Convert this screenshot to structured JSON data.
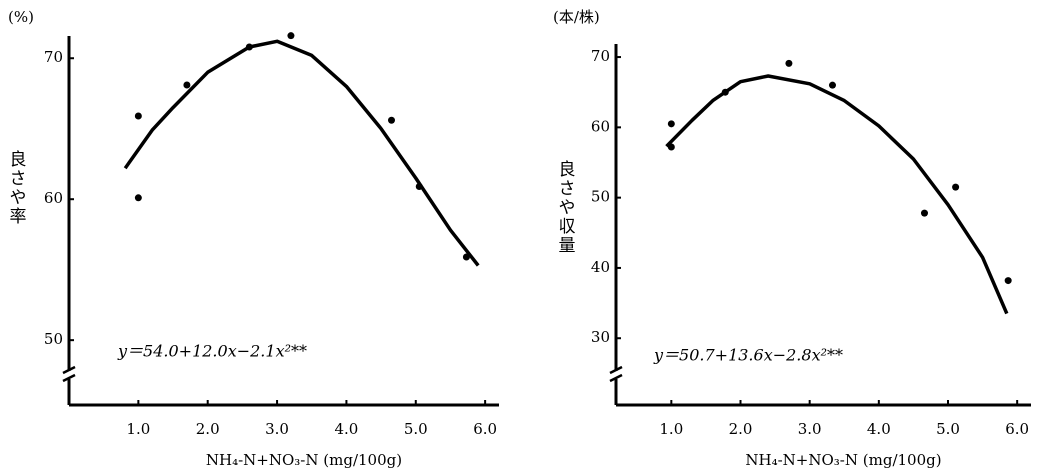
{
  "chart_data": [
    {
      "type": "scatter",
      "y_unit": "(%)",
      "ylabel": "良さや率",
      "xlabel": "NH₄-N+NO₃-N (mg/100g)",
      "equation": "y＝54.0+12.0x−2.1x²**",
      "color": "#000000",
      "grid": false,
      "y_break": true,
      "xlim": [
        0,
        6.2
      ],
      "ylim": [
        45.4,
        72.5
      ],
      "xticks": [
        {
          "value": 1,
          "label": "1.0"
        },
        {
          "value": 2,
          "label": "2.0"
        },
        {
          "value": 3,
          "label": "3.0"
        },
        {
          "value": 4,
          "label": "4.0"
        },
        {
          "value": 5,
          "label": "5.0"
        },
        {
          "value": 6,
          "label": "6.0"
        }
      ],
      "yticks": [
        50,
        60,
        70
      ],
      "points": {
        "x": [
          1.0,
          1.0,
          1.7,
          2.6,
          3.2,
          4.65,
          5.05,
          5.73
        ],
        "values": [
          65.9,
          60.1,
          68.1,
          70.8,
          71.6,
          65.6,
          60.9,
          55.9
        ]
      },
      "curve": {
        "x": [
          0.81,
          1.2,
          1.5,
          2.0,
          2.6,
          3.0,
          3.5,
          4.0,
          4.5,
          5.0,
          5.5,
          5.9
        ],
        "values": [
          62.2,
          64.9,
          66.5,
          69.0,
          70.8,
          71.2,
          70.2,
          68.0,
          65.0,
          61.5,
          57.8,
          55.3
        ]
      }
    },
    {
      "type": "scatter",
      "y_unit": "(本/株)",
      "ylabel": "良さや収量",
      "xlabel": "NH₄-N+NO₃-N (mg/100g)",
      "equation": "y＝50.7+13.6x−2.8x²**",
      "color": "#000000",
      "grid": false,
      "y_break": true,
      "xlim": [
        0.2,
        6.2
      ],
      "ylim": [
        20.5,
        72
      ],
      "xticks": [
        {
          "value": 1,
          "label": "1.0"
        },
        {
          "value": 2,
          "label": "2.0"
        },
        {
          "value": 3,
          "label": "3.0"
        },
        {
          "value": 4,
          "label": "4.0"
        },
        {
          "value": 5,
          "label": "5.0"
        },
        {
          "value": 6,
          "label": "6.0"
        }
      ],
      "yticks": [
        30,
        40,
        50,
        60,
        70
      ],
      "points": {
        "x": [
          1.0,
          1.0,
          1.78,
          2.7,
          3.33,
          4.66,
          5.11,
          5.87
        ],
        "values": [
          60.5,
          57.2,
          65.0,
          69.1,
          66.0,
          47.8,
          51.5,
          38.2
        ]
      },
      "curve": {
        "x": [
          0.93,
          1.3,
          1.6,
          2.0,
          2.4,
          3.0,
          3.5,
          4.0,
          4.5,
          5.0,
          5.5,
          5.85
        ],
        "values": [
          57.3,
          61.0,
          63.8,
          66.5,
          67.3,
          66.2,
          63.8,
          60.2,
          55.5,
          49.0,
          41.5,
          33.5
        ]
      }
    }
  ]
}
